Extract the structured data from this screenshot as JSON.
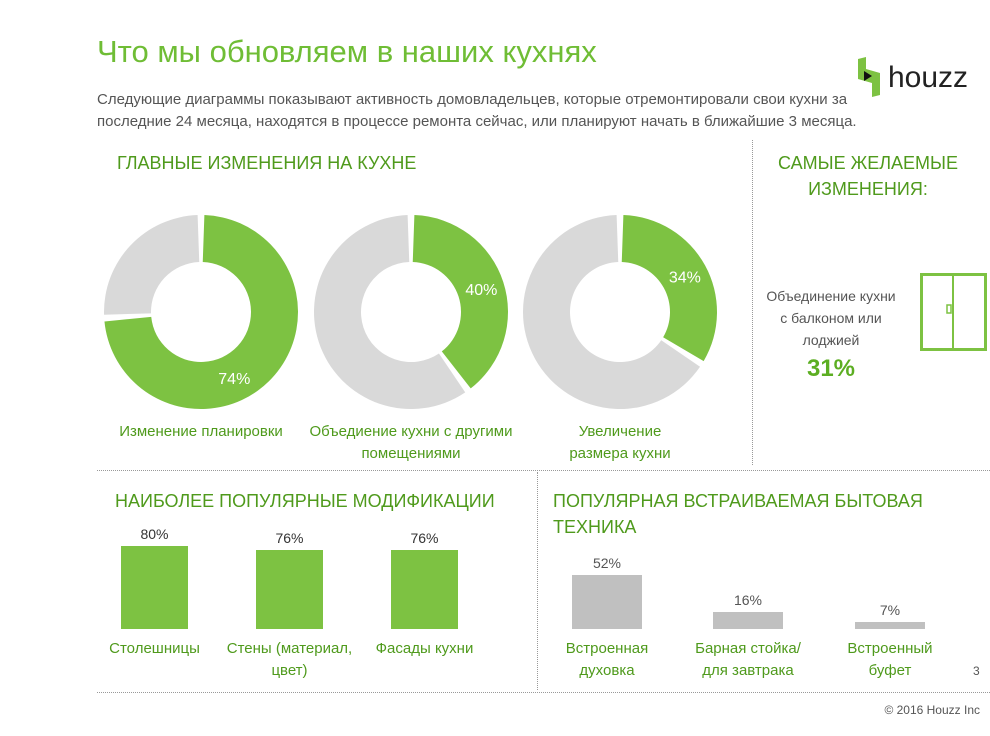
{
  "header": {
    "title": "Что мы обновляем в наших кухнях",
    "subtitle_lines": [
      "Следующие диаграммы показывают активность домовладельцев, которые отремонтировали свои кухни за",
      "последние 24 месяца, находятся в процессе ремонта сейчас, или планируют начать в ближайшие 3 месяца."
    ],
    "logo_text": "houzz"
  },
  "colors": {
    "green": "#7dc242",
    "gray": "#d9d9d9",
    "bar_gray": "#c0c0c0",
    "title_green": "#6fbd35"
  },
  "main_changes": {
    "heading": "ГЛАВНЫЕ ИЗМЕНЕНИЯ НА КУХНЕ"
  },
  "desired": {
    "heading_lines": [
      "САМЫЕ ЖЕЛАЕМЫЕ",
      "ИЗМЕНЕНИЯ:"
    ],
    "label_lines": [
      "Объединение кухни",
      "с балконом или",
      "лоджией"
    ],
    "value": "31%",
    "icon": "sliding-door-icon"
  },
  "modifications": {
    "heading": "НАИБОЛЕЕ ПОПУЛЯРНЫЕ МОДИФИКАЦИИ"
  },
  "appliances": {
    "heading_lines": [
      "ПОПУЛЯРНАЯ ВСТРАИВАЕМАЯ БЫТОВАЯ",
      "ТЕХНИКА"
    ]
  },
  "footer": {
    "page_number": "3",
    "copyright": "© 2016 Houzz Inc"
  },
  "chart_data": [
    {
      "type": "pie",
      "variant": "donut",
      "categories": [
        "Изменение планировки"
      ],
      "values": [
        74
      ],
      "label": "74%",
      "caption_lines": [
        "Изменение планировки"
      ]
    },
    {
      "type": "pie",
      "variant": "donut",
      "categories": [
        "Объедиение кухни с другими помещениями"
      ],
      "values": [
        40
      ],
      "label": "40%",
      "caption_lines": [
        "Объедиение кухни с другими",
        "помещениями"
      ]
    },
    {
      "type": "pie",
      "variant": "donut",
      "categories": [
        "Увеличение размера кухни"
      ],
      "values": [
        34
      ],
      "label": "34%",
      "caption_lines": [
        "Увеличение",
        "размера кухни"
      ]
    },
    {
      "type": "bar",
      "categories": [
        "Столешницы",
        "Стены (материал, цвет)",
        "Фасады кухни"
      ],
      "category_lines": [
        [
          "Столешницы"
        ],
        [
          "Стены (материал,",
          "цвет)"
        ],
        [
          "Фасады кухни"
        ]
      ],
      "values": [
        80,
        76,
        76
      ],
      "labels": [
        "80%",
        "76%",
        "76%"
      ]
    },
    {
      "type": "bar",
      "categories": [
        "Встроенная духовка",
        "Барная стойка/ для завтрака",
        "Встроенный буфет"
      ],
      "category_lines": [
        [
          "Встроенная",
          "духовка"
        ],
        [
          "Барная стойка/",
          "для завтрака"
        ],
        [
          "Встроенный",
          "буфет"
        ]
      ],
      "values": [
        52,
        16,
        7
      ],
      "labels": [
        "52%",
        "16%",
        "7%"
      ]
    }
  ]
}
